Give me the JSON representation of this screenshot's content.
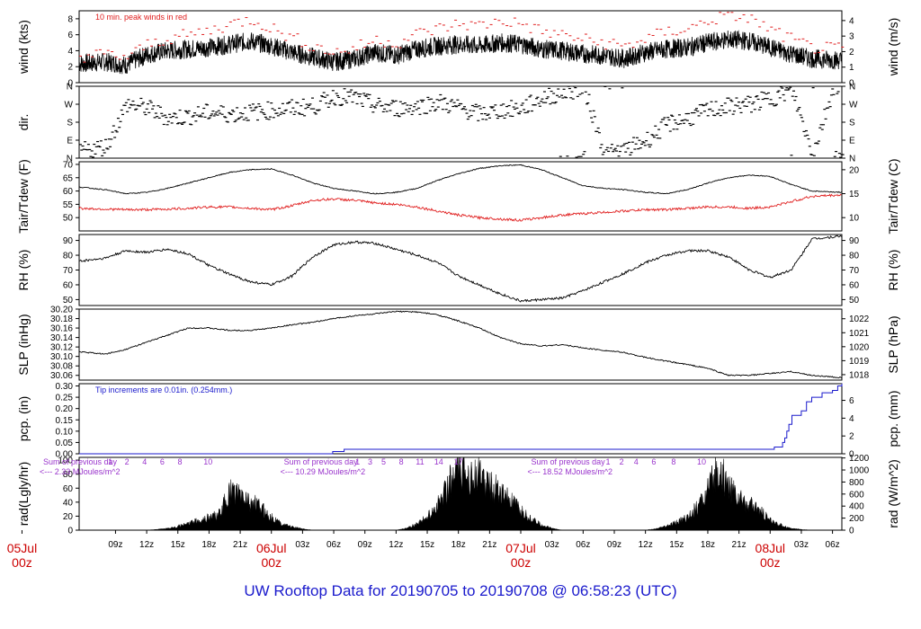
{
  "footer": "UW Rooftop Data for 20190705  to  20190708 @ 06:58:23  (UTC)",
  "colors": {
    "axis": "#000000",
    "peak": "#e02020",
    "dew": "#e02020",
    "rain": "#1a1acc",
    "rad_note": "#9933cc",
    "date": "#cc0000",
    "footer": "#1a1acc"
  },
  "x_axis": {
    "range_hours": [
      5.5,
      78.9
    ],
    "ticks": [
      {
        "h": 9,
        "label": "09z"
      },
      {
        "h": 12,
        "label": "12z"
      },
      {
        "h": 15,
        "label": "15z"
      },
      {
        "h": 18,
        "label": "18z"
      },
      {
        "h": 21,
        "label": "21z"
      },
      {
        "h": 27,
        "label": "03z"
      },
      {
        "h": 30,
        "label": "06z"
      },
      {
        "h": 33,
        "label": "09z"
      },
      {
        "h": 36,
        "label": "12z"
      },
      {
        "h": 39,
        "label": "15z"
      },
      {
        "h": 42,
        "label": "18z"
      },
      {
        "h": 45,
        "label": "21z"
      },
      {
        "h": 51,
        "label": "03z"
      },
      {
        "h": 54,
        "label": "06z"
      },
      {
        "h": 57,
        "label": "09z"
      },
      {
        "h": 60,
        "label": "12z"
      },
      {
        "h": 63,
        "label": "15z"
      },
      {
        "h": 66,
        "label": "18z"
      },
      {
        "h": 69,
        "label": "21z"
      },
      {
        "h": 75,
        "label": "03z"
      },
      {
        "h": 78,
        "label": "06z"
      }
    ],
    "day_labels": [
      {
        "h": 0,
        "line1": "05Jul",
        "line2": "00z"
      },
      {
        "h": 24,
        "line1": "06Jul",
        "line2": "00z"
      },
      {
        "h": 48,
        "line1": "07Jul",
        "line2": "00z"
      },
      {
        "h": 72,
        "line1": "08Jul",
        "line2": "00z"
      }
    ]
  },
  "chart_data": [
    {
      "type": "line",
      "id": "wind",
      "ylabel": "wind (kts)",
      "ylabel_right": "wind (m/s)",
      "ylim": [
        0,
        9
      ],
      "left_ticks": [
        0,
        2,
        4,
        6,
        8
      ],
      "right_ticks": [
        0,
        1,
        2,
        3,
        4
      ],
      "right_factor": 0.5144,
      "annotation": "10 min. peak winds in red",
      "series": [
        {
          "role": "mean",
          "x": [
            6,
            8,
            10,
            12,
            14,
            16,
            18,
            20,
            22,
            24,
            26,
            28,
            30,
            32,
            34,
            36,
            38,
            40,
            42,
            44,
            46,
            48,
            50,
            52,
            54,
            56,
            58,
            60,
            62,
            64,
            66,
            68,
            70,
            72,
            74,
            76,
            78.9
          ],
          "y": [
            2.4,
            2.6,
            2.2,
            3.5,
            4.0,
            4.2,
            4.4,
            4.8,
            5.2,
            4.6,
            3.8,
            3.2,
            2.6,
            3.0,
            3.8,
            3.4,
            4.2,
            4.6,
            4.8,
            4.6,
            5.0,
            4.8,
            4.2,
            4.0,
            3.6,
            3.4,
            3.0,
            3.8,
            4.2,
            4.4,
            5.0,
            5.4,
            5.2,
            4.4,
            3.6,
            3.0,
            2.8
          ]
        },
        {
          "role": "peak",
          "x": [
            6,
            8,
            10,
            12,
            14,
            16,
            18,
            20,
            22,
            24,
            26,
            28,
            30,
            32,
            34,
            36,
            38,
            40,
            42,
            44,
            46,
            48,
            50,
            52,
            54,
            56,
            58,
            60,
            62,
            64,
            66,
            68,
            70,
            72,
            74,
            76,
            78.9
          ],
          "y": [
            3.2,
            3.4,
            3.0,
            4.6,
            5.4,
            5.8,
            6.4,
            7.2,
            7.8,
            6.6,
            5.4,
            4.4,
            3.6,
            4.2,
            5.2,
            4.8,
            6.0,
            6.6,
            7.2,
            7.0,
            7.6,
            7.2,
            6.2,
            5.8,
            5.2,
            4.8,
            4.4,
            5.4,
            6.2,
            6.6,
            7.6,
            8.4,
            7.8,
            6.4,
            5.2,
            4.2,
            4.0
          ]
        }
      ]
    },
    {
      "type": "scatter",
      "id": "dir",
      "ylabel": "dir.",
      "ylim": [
        0,
        360
      ],
      "categories": [
        "N",
        "E",
        "S",
        "W",
        "N"
      ],
      "x": [
        6,
        8,
        10,
        12,
        14,
        16,
        18,
        20,
        22,
        24,
        26,
        28,
        30,
        32,
        34,
        36,
        38,
        40,
        42,
        44,
        46,
        48,
        50,
        52,
        54,
        56,
        58,
        60,
        62,
        64,
        66,
        68,
        70,
        72,
        74,
        76,
        78
      ],
      "y": [
        40,
        60,
        270,
        250,
        200,
        210,
        230,
        220,
        230,
        240,
        250,
        260,
        310,
        300,
        260,
        250,
        260,
        280,
        250,
        220,
        240,
        250,
        300,
        330,
        350,
        20,
        40,
        90,
        170,
        200,
        240,
        260,
        270,
        300,
        340,
        20,
        360
      ]
    },
    {
      "type": "line",
      "id": "temp",
      "ylabel": "Tair/Tdew (F)",
      "ylabel_right": "Tair/Tdew (C)",
      "ylim": [
        45,
        71
      ],
      "left_ticks": [
        50,
        55,
        60,
        65,
        70
      ],
      "right_ticks": [
        10,
        15,
        20
      ],
      "series": [
        {
          "role": "tair",
          "x": [
            5.5,
            8,
            10,
            12,
            14,
            16,
            18,
            20,
            22,
            24,
            26,
            28,
            30,
            32,
            34,
            36,
            38,
            40,
            42,
            44,
            46,
            48,
            50,
            52,
            54,
            56,
            58,
            60,
            62,
            64,
            66,
            68,
            70,
            72,
            74,
            76,
            78.9
          ],
          "y": [
            61.5,
            60.5,
            59.0,
            59.5,
            61,
            63,
            65,
            67,
            68,
            68.3,
            66,
            63,
            61,
            60,
            59,
            59.5,
            61,
            64,
            66.5,
            68.5,
            69.5,
            69.8,
            68,
            65,
            62,
            61,
            60.5,
            59.5,
            59,
            60.5,
            63,
            65,
            66,
            65.5,
            62.5,
            60,
            59.5
          ]
        },
        {
          "role": "tdew",
          "x": [
            5.5,
            8,
            10,
            12,
            14,
            16,
            18,
            20,
            22,
            24,
            26,
            28,
            30,
            32,
            34,
            36,
            38,
            40,
            42,
            44,
            46,
            48,
            50,
            52,
            54,
            56,
            58,
            60,
            62,
            64,
            66,
            68,
            70,
            72,
            74,
            76,
            78.9
          ],
          "y": [
            53.5,
            53.2,
            53,
            53,
            53.2,
            53.5,
            54,
            54,
            53.5,
            53,
            54.5,
            56.5,
            57,
            56.5,
            55.5,
            55,
            54,
            52.5,
            51,
            50,
            49.5,
            49,
            50,
            51,
            51.5,
            52,
            52.5,
            53,
            53,
            53.5,
            54,
            54,
            53.5,
            54,
            56,
            58,
            58.5
          ]
        }
      ]
    },
    {
      "type": "line",
      "id": "rh",
      "ylabel": "RH (%)",
      "ylabel_right": "RH (%)",
      "ylim": [
        46,
        94
      ],
      "left_ticks": [
        50,
        60,
        70,
        80,
        90
      ],
      "right_ticks": [
        50,
        60,
        70,
        80,
        90
      ],
      "x": [
        5.5,
        8,
        10,
        12,
        14,
        16,
        18,
        20,
        22,
        24,
        26,
        28,
        30,
        32,
        34,
        36,
        38,
        40,
        42,
        44,
        46,
        48,
        50,
        52,
        54,
        56,
        58,
        60,
        62,
        64,
        66,
        68,
        70,
        72,
        74,
        75,
        76,
        78.9
      ],
      "y": [
        76,
        78,
        83,
        82,
        84,
        81,
        73,
        67,
        62,
        60,
        66,
        79,
        87,
        89,
        88,
        84,
        80,
        75,
        66,
        60,
        54,
        49,
        50,
        51,
        56,
        62,
        68,
        75,
        80,
        83,
        83,
        79,
        70,
        65,
        70,
        80,
        91,
        93
      ]
    },
    {
      "type": "line",
      "id": "slp",
      "ylabel": "SLP (inHg)",
      "ylabel_right": "SLP (hPa)",
      "ylim": [
        30.05,
        30.2
      ],
      "left_ticks": [
        30.06,
        30.08,
        30.1,
        30.12,
        30.14,
        30.16,
        30.18,
        30.2
      ],
      "right_ticks": [
        1018,
        1019,
        1020,
        1021,
        1022
      ],
      "x": [
        5.5,
        8,
        10,
        12,
        14,
        16,
        18,
        20,
        22,
        24,
        26,
        28,
        30,
        32,
        34,
        36,
        38,
        40,
        42,
        44,
        46,
        48,
        50,
        52,
        54,
        56,
        58,
        60,
        62,
        64,
        66,
        68,
        70,
        72,
        74,
        76,
        78.9
      ],
      "y": [
        30.11,
        30.105,
        30.115,
        30.13,
        30.145,
        30.16,
        30.16,
        30.155,
        30.155,
        30.16,
        30.167,
        30.172,
        30.18,
        30.186,
        30.19,
        30.195,
        30.194,
        30.188,
        30.175,
        30.16,
        30.14,
        30.127,
        30.122,
        30.125,
        30.118,
        30.113,
        30.108,
        30.098,
        30.09,
        30.083,
        30.075,
        30.06,
        30.06,
        30.064,
        30.068,
        30.06,
        30.055
      ]
    },
    {
      "type": "line",
      "id": "pcp",
      "ylabel": "pcp. (in)",
      "ylabel_right": "pcp. (mm)",
      "ylim": [
        0,
        0.31
      ],
      "left_ticks": [
        0.0,
        0.05,
        0.1,
        0.15,
        0.2,
        0.25,
        0.3
      ],
      "right_ticks": [
        0,
        2,
        4,
        6,
        8
      ],
      "annotation": "Tip increments are 0.01in. (0.254mm.)",
      "x": [
        5.5,
        29.8,
        29.9,
        30.9,
        31.0,
        72.3,
        72.4,
        73.2,
        73.4,
        73.6,
        73.8,
        74.1,
        75.0,
        75.5,
        76.0,
        77.0,
        78.0,
        78.5,
        78.9
      ],
      "y": [
        0,
        0,
        0.01,
        0.01,
        0.02,
        0.02,
        0.03,
        0.05,
        0.07,
        0.1,
        0.13,
        0.17,
        0.19,
        0.23,
        0.25,
        0.27,
        0.28,
        0.3,
        0.31
      ]
    },
    {
      "type": "area",
      "id": "rad",
      "ylabel": "rad(Lgly/hr)",
      "ylabel_right": "rad (W/m^2)",
      "ylim": [
        0,
        104
      ],
      "left_ticks": [
        0,
        20,
        40,
        60,
        80,
        100
      ],
      "right_ticks": [
        0,
        200,
        400,
        600,
        800,
        1000,
        1200
      ],
      "right_factor": 11.63,
      "x": [
        12.0,
        13.0,
        14.0,
        15.0,
        16.0,
        17.0,
        18.0,
        19.0,
        20.0,
        21.0,
        22.0,
        23.0,
        24.0,
        25.0,
        26.0,
        27.0,
        28.0,
        36.0,
        37.0,
        38.0,
        39.0,
        40.0,
        41.0,
        42.0,
        43.0,
        44.0,
        45.0,
        46.0,
        47.0,
        48.0,
        49.0,
        50.0,
        51.0,
        52.0,
        60.0,
        61.0,
        62.0,
        63.0,
        64.0,
        65.0,
        66.0,
        67.0,
        68.0,
        69.0,
        70.0,
        71.0,
        72.0,
        73.0,
        74.0,
        75.0,
        76.0
      ],
      "y": [
        0,
        1,
        3,
        6,
        10,
        15,
        20,
        25,
        60,
        55,
        45,
        35,
        20,
        10,
        5,
        2,
        0,
        0,
        3,
        10,
        20,
        40,
        70,
        95,
        90,
        85,
        70,
        60,
        45,
        30,
        18,
        8,
        3,
        0,
        0,
        2,
        6,
        12,
        20,
        35,
        60,
        95,
        70,
        50,
        40,
        30,
        15,
        8,
        3,
        1,
        0
      ],
      "annotations": [
        {
          "text": "Sum of previous day",
          "text2": "<--- 2.33 MJoules/m^2"
        },
        {
          "text": "Sum of previous day",
          "text2": "<--- 10.29 MJoules/m^2"
        },
        {
          "text": "Sum of previous day",
          "text2": "<--- 18.52 MJoules/m^2"
        }
      ],
      "hour_marks": [
        {
          "h": 14,
          "labels": [
            "1",
            "2",
            "4",
            "6",
            "8",
            "10"
          ]
        },
        {
          "h": 38,
          "labels": [
            "1",
            "3",
            "5",
            "8",
            "11",
            "14",
            "17"
          ]
        },
        {
          "h": 62,
          "labels": [
            "1",
            "2",
            "4",
            "6",
            "8",
            "10"
          ]
        }
      ]
    }
  ]
}
